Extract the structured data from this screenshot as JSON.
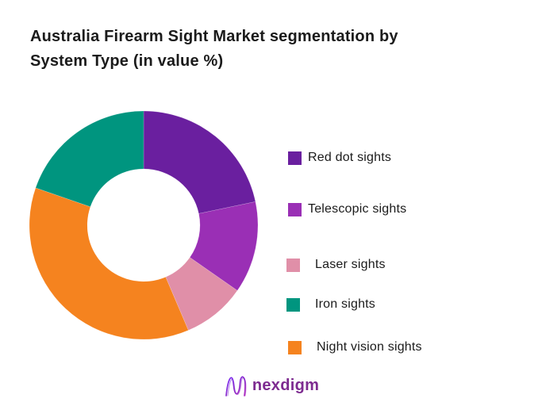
{
  "header": {
    "title_line1": "Australia Firearm Sight Market segmentation by",
    "title_line2": "System Type (in value %)"
  },
  "chart_data": {
    "type": "pie",
    "subtype": "donut",
    "title": "Australia Firearm Sight Market segmentation by System Type (in value %)",
    "unit": "value %",
    "start_angle_deg": 0,
    "direction": "clockwise",
    "inner_radius_ratio": 0.49,
    "data_labels_shown": false,
    "values_estimated_from_arc_angles": true,
    "segments": [
      {
        "label": "Red dot sights",
        "value_pct": 21.7,
        "color": "#6A1F9F"
      },
      {
        "label": "Telescopic sights",
        "value_pct": 13.0,
        "color": "#9A2FB5"
      },
      {
        "label": "Laser sights",
        "value_pct": 8.9,
        "color": "#E08FA8"
      },
      {
        "label": "Night vision sights",
        "value_pct": 36.7,
        "color": "#F5831F"
      },
      {
        "label": "Iron sights",
        "value_pct": 19.7,
        "color": "#00957F"
      }
    ],
    "legend_position": "right"
  },
  "legend": {
    "items": [
      {
        "label": "Red dot sights",
        "color": "#6A1F9F"
      },
      {
        "label": "Telescopic sights",
        "color": "#9A2FB5"
      },
      {
        "label": "Laser sights",
        "color": "#E08FA8"
      },
      {
        "label": "Iron sights",
        "color": "#00957F"
      },
      {
        "label": "Night vision sights",
        "color": "#F5831F"
      }
    ]
  },
  "footer": {
    "brand": "nexdigm",
    "brand_color": "#7D2B90"
  }
}
